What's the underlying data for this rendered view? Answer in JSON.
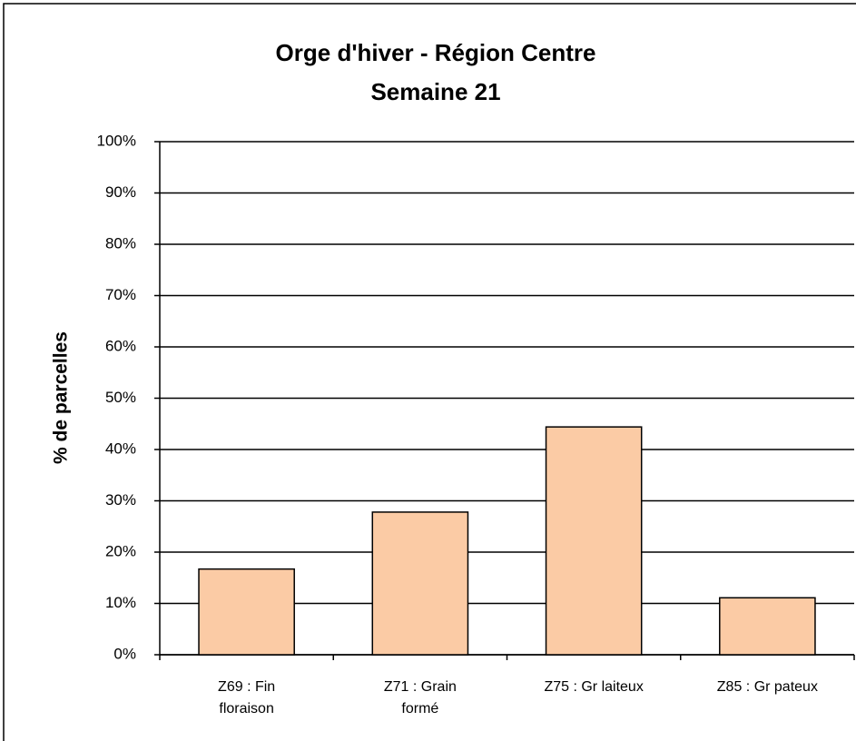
{
  "chart_data": {
    "type": "bar",
    "title": "Orge d'hiver - Région Centre",
    "subtitle": "Semaine 21",
    "y_label": "% de parcelles",
    "categories": [
      "Z69 : Fin floraison",
      "Z71 : Grain formé",
      "Z75 : Gr laiteux",
      "Z85 : Gr pateux"
    ],
    "values": [
      16.7,
      27.8,
      44.4,
      11.1
    ],
    "color": "#fbcba5",
    "ylim": [
      0,
      100
    ],
    "yticks": [
      {
        "value": 0,
        "label": "0%"
      },
      {
        "value": 10,
        "label": "10%"
      },
      {
        "value": 20,
        "label": "20%"
      },
      {
        "value": 30,
        "label": "30%"
      },
      {
        "value": 40,
        "label": "40%"
      },
      {
        "value": 50,
        "label": "50%"
      },
      {
        "value": 60,
        "label": "60%"
      },
      {
        "value": 70,
        "label": "70%"
      },
      {
        "value": 80,
        "label": "80%"
      },
      {
        "value": 90,
        "label": "90%"
      },
      {
        "value": 100,
        "label": "100%"
      }
    ],
    "grid": true
  }
}
